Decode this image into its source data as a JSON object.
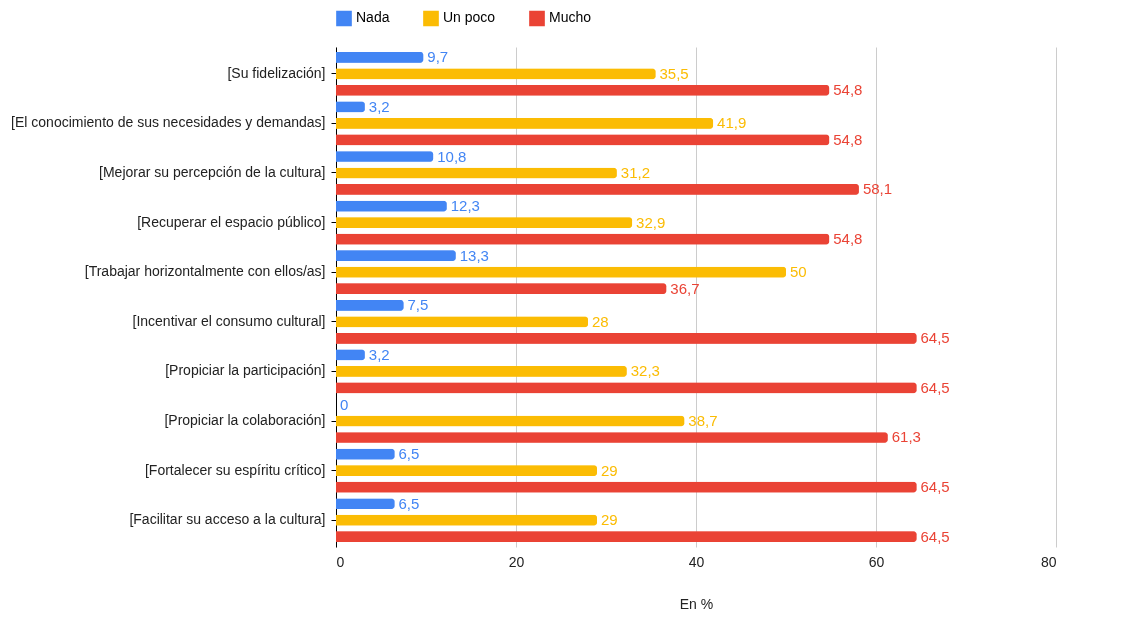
{
  "chart_data": {
    "type": "bar",
    "orientation": "horizontal",
    "xlabel": "En %",
    "categories": [
      "[Su fidelización]",
      "[El conocimiento de sus necesidades y demandas]",
      "[Mejorar su percepción de la cultura]",
      "[Recuperar el espacio público]",
      "[Trabajar horizontalmente con ellos/as]",
      "[Incentivar el consumo cultural]",
      "[Propiciar la participación]",
      "[Propiciar la colaboración]",
      "[Fortalecer su espíritu crítico]",
      "[Facilitar su acceso a la cultura]"
    ],
    "series": [
      {
        "name": "Nada",
        "color": "#4285f4",
        "values": [
          9.7,
          3.2,
          10.8,
          12.3,
          13.3,
          7.5,
          3.2,
          0,
          6.5,
          6.5
        ],
        "value_labels": [
          "9,7",
          "3,2",
          "10,8",
          "12,3",
          "13,3",
          "7,5",
          "3,2",
          "0",
          "6,5",
          "6,5"
        ]
      },
      {
        "name": "Un poco",
        "color": "#fbbc04",
        "values": [
          35.5,
          41.9,
          31.2,
          32.9,
          50,
          28,
          32.3,
          38.7,
          29,
          29
        ],
        "value_labels": [
          "35,5",
          "41,9",
          "31,2",
          "32,9",
          "50",
          "28",
          "32,3",
          "38,7",
          "29",
          "29"
        ]
      },
      {
        "name": "Mucho",
        "color": "#ea4335",
        "values": [
          54.8,
          54.8,
          58.1,
          54.8,
          36.7,
          64.5,
          64.5,
          61.3,
          64.5,
          64.5
        ],
        "value_labels": [
          "54,8",
          "54,8",
          "58,1",
          "54,8",
          "36,7",
          "64,5",
          "64,5",
          "61,3",
          "64,5",
          "64,5"
        ]
      }
    ],
    "xlim": [
      0,
      80
    ],
    "xticks": [
      0,
      20,
      40,
      60,
      80
    ],
    "grid": "x",
    "legend": "top"
  }
}
